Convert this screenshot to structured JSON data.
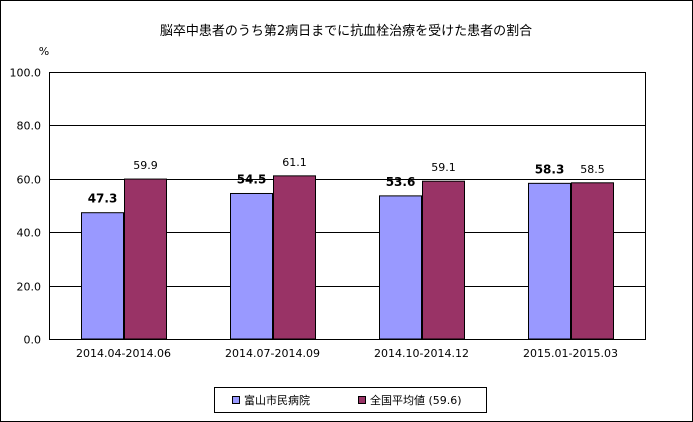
{
  "chart_data": {
    "type": "bar",
    "title": "脳卒中患者のうち第2病日までに抗血栓治療を受けた患者の割合",
    "ylabel": "%",
    "xlabel": "",
    "ylim": [
      0,
      100
    ],
    "yticks": [
      "0.0",
      "20.0",
      "40.0",
      "60.0",
      "80.0",
      "100.0"
    ],
    "grid": true,
    "legend_position": "bottom",
    "categories": [
      "2014.04-2014.06",
      "2014.07-2014.09",
      "2014.10-2014.12",
      "2015.01-2015.03"
    ],
    "series": [
      {
        "name": "富山市民病院",
        "values": [
          47.3,
          54.5,
          53.6,
          58.3
        ],
        "labels": [
          "47.3",
          "54.5",
          "53.6",
          "58.3"
        ],
        "color": "#9999ff"
      },
      {
        "name": "全国平均値 (59.6)",
        "values": [
          59.9,
          61.1,
          59.1,
          58.5
        ],
        "labels": [
          "59.9",
          "61.1",
          "59.1",
          "58.5"
        ],
        "color": "#993366"
      }
    ]
  }
}
